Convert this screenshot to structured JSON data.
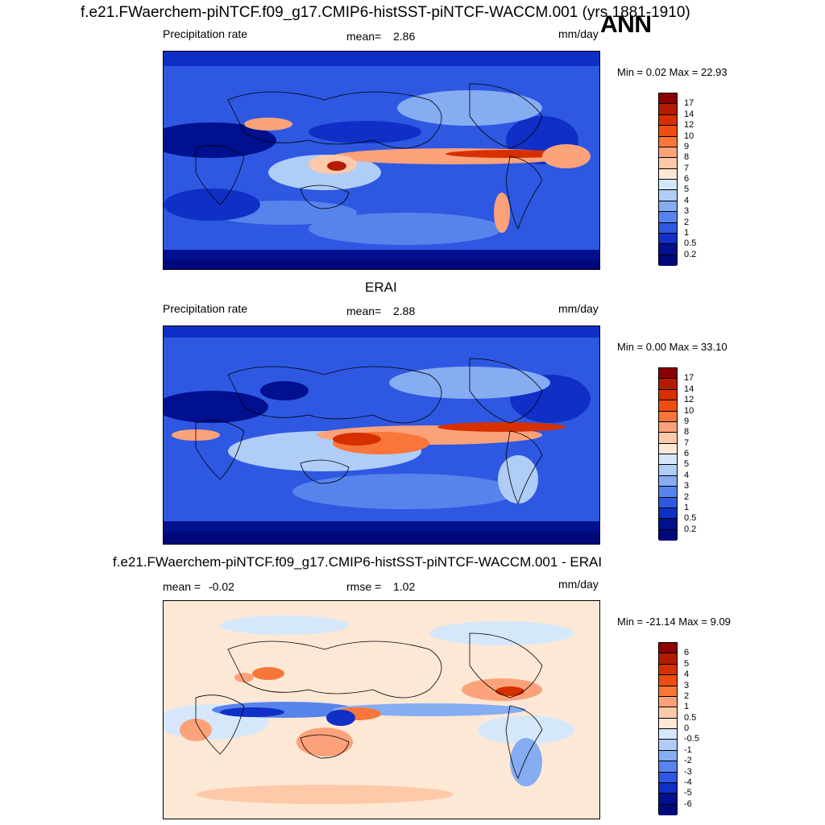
{
  "page_title": "f.e21.FWaerchem-piNTCF.f09_g17.CMIP6-histSST-piNTCF-WACCM.001 (yrs 1881-1910)",
  "season": "ANN",
  "panels": [
    {
      "title": "",
      "variable": "Precipitation rate",
      "stat_label": "mean=",
      "stat_value": "2.86",
      "stat2_label": "",
      "stat2_value": "",
      "units": "mm/day",
      "minmax": "Min =   0.02 Max =  22.93",
      "kind": "abs",
      "colorbar_labels": [
        "17",
        "14",
        "12",
        "10",
        "9",
        "8",
        "7",
        "6",
        "5",
        "4",
        "3",
        "2",
        "1",
        "0.5",
        "0.2"
      ]
    },
    {
      "title": "ERAI",
      "variable": "Precipitation rate",
      "stat_label": "mean=",
      "stat_value": "2.88",
      "stat2_label": "",
      "stat2_value": "",
      "units": "mm/day",
      "minmax": "Min =   0.00 Max =  33.10",
      "kind": "abs",
      "colorbar_labels": [
        "17",
        "14",
        "12",
        "10",
        "9",
        "8",
        "7",
        "6",
        "5",
        "4",
        "3",
        "2",
        "1",
        "0.5",
        "0.2"
      ]
    },
    {
      "title": "f.e21.FWaerchem-piNTCF.f09_g17.CMIP6-histSST-piNTCF-WACCM.001 - ERAI",
      "variable": "",
      "stat_label": "mean =",
      "stat_value": "-0.02",
      "stat2_label": "rmse =",
      "stat2_value": "1.02",
      "units": "mm/day",
      "minmax": "Min = -21.14 Max =   9.09",
      "kind": "diff",
      "colorbar_labels": [
        "6",
        "5",
        "4",
        "3",
        "2",
        "1",
        "0.5",
        "0",
        "-0.5",
        "-1",
        "-2",
        "-3",
        "-4",
        "-5",
        "-6"
      ]
    }
  ],
  "colors": {
    "abs": [
      "#8b0000",
      "#b31b00",
      "#d63000",
      "#ee4f10",
      "#f8763a",
      "#fca27a",
      "#fec9a8",
      "#fde8d6",
      "#d5e8fb",
      "#b0cdf7",
      "#86acf2",
      "#5784ec",
      "#2e58e2",
      "#0f2fc6",
      "#00108f",
      "#00087a"
    ],
    "diff": [
      "#8b0000",
      "#b31b00",
      "#d63000",
      "#ee4f10",
      "#f8763a",
      "#fca27a",
      "#fec9a8",
      "#fde8d6",
      "#d5e8fb",
      "#b0cdf7",
      "#86acf2",
      "#5784ec",
      "#2e58e2",
      "#0f2fc6",
      "#00108f",
      "#00087a"
    ]
  }
}
